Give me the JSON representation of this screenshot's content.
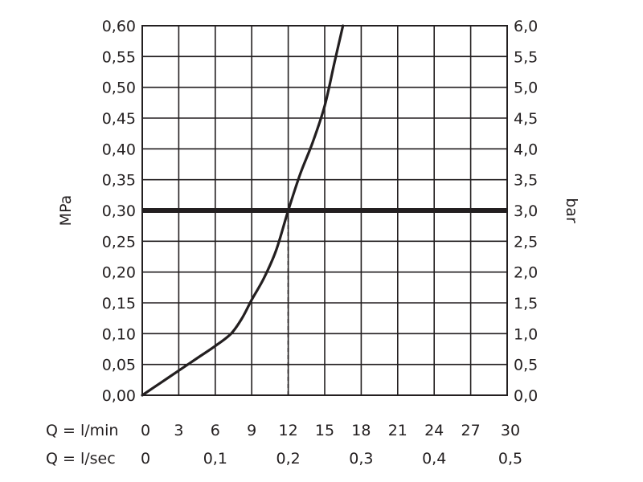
{
  "chart_data": {
    "type": "line",
    "title": "",
    "ylabel_left": "MPa",
    "ylabel_right": "bar",
    "x_axis_rows": [
      {
        "label": "Q = l/min",
        "ticks": [
          0,
          3,
          6,
          9,
          12,
          15,
          18,
          21,
          24,
          27,
          30
        ],
        "tick_labels": [
          "0",
          "3",
          "6",
          "9",
          "12",
          "15",
          "18",
          "21",
          "24",
          "27",
          "30"
        ]
      },
      {
        "label": "Q = l/sec",
        "ticks": [
          0,
          6,
          12,
          18,
          24,
          30
        ],
        "tick_labels": [
          "0",
          "0,1",
          "0,2",
          "0,3",
          "0,4",
          "0,5"
        ]
      }
    ],
    "xlim": [
      0,
      30
    ],
    "ylim_left": [
      0,
      0.6
    ],
    "ylim_right": [
      0,
      6
    ],
    "y_ticks": [
      0,
      0.05,
      0.1,
      0.15,
      0.2,
      0.25,
      0.3,
      0.35,
      0.4,
      0.45,
      0.5,
      0.55,
      0.6
    ],
    "y_tick_labels_left": [
      "0,00",
      "0,05",
      "0,10",
      "0,15",
      "0,20",
      "0,25",
      "0,30",
      "0,35",
      "0,40",
      "0,45",
      "0,50",
      "0,55",
      "0,60"
    ],
    "y_tick_labels_right": [
      "0,0",
      "0,5",
      "1,0",
      "1,5",
      "2,0",
      "2,5",
      "3,0",
      "3,5",
      "4,0",
      "4,5",
      "5,0",
      "5,5",
      "6,0"
    ],
    "grid": true,
    "series": [
      {
        "x": [
          0,
          1.5,
          3,
          4.5,
          6,
          7.3,
          8.2,
          9,
          10,
          11,
          12,
          13,
          14,
          15,
          15.8,
          16.5
        ],
        "y": [
          0,
          0.02,
          0.04,
          0.06,
          0.08,
          0.1,
          0.125,
          0.155,
          0.19,
          0.235,
          0.3,
          0.36,
          0.41,
          0.47,
          0.54,
          0.6
        ],
        "color": "#231f20"
      }
    ],
    "reference_line": {
      "y": 0.3,
      "color": "#231f20"
    },
    "drop_line": {
      "x": 12,
      "y": 0.3
    }
  }
}
